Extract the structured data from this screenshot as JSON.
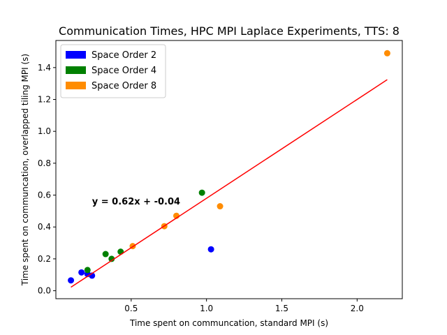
{
  "chart_data": {
    "type": "scatter",
    "title": "Communication Times, HPC MPI Laplace Experiments, TTS: 8",
    "xlabel": "Time spent on communcation, standard MPI (s)",
    "ylabel": "Time spent on communcation, overlapped tiling MPI (s)",
    "xlim": [
      0.0,
      2.3
    ],
    "ylim": [
      -0.05,
      1.57
    ],
    "x_ticks": [
      0.5,
      1.0,
      1.5,
      2.0
    ],
    "x_tick_labels": [
      "0.5",
      "1.0",
      "1.5",
      "2.0"
    ],
    "y_ticks": [
      0.0,
      0.2,
      0.4,
      0.6,
      0.8,
      1.0,
      1.2,
      1.4
    ],
    "y_tick_labels": [
      "0.0",
      "0.2",
      "0.4",
      "0.6",
      "0.8",
      "1.0",
      "1.2",
      "1.4"
    ],
    "grid": false,
    "legend_position": "top-left",
    "series": [
      {
        "name": "Space Order 2",
        "color": "#0000ff",
        "points": [
          [
            0.1,
            0.065
          ],
          [
            0.17,
            0.115
          ],
          [
            0.21,
            0.105
          ],
          [
            0.24,
            0.095
          ],
          [
            1.03,
            0.26
          ]
        ]
      },
      {
        "name": "Space Order 4",
        "color": "#008000",
        "points": [
          [
            0.21,
            0.13
          ],
          [
            0.33,
            0.23
          ],
          [
            0.37,
            0.2
          ],
          [
            0.43,
            0.245
          ],
          [
            0.97,
            0.615
          ]
        ]
      },
      {
        "name": "Space Order 8",
        "color": "#ff8c00",
        "points": [
          [
            0.51,
            0.28
          ],
          [
            0.72,
            0.405
          ],
          [
            0.8,
            0.47
          ],
          [
            1.09,
            0.53
          ],
          [
            2.2,
            1.49
          ]
        ]
      }
    ],
    "fit_line": {
      "slope": 0.62,
      "intercept": -0.04,
      "x_range": [
        0.1,
        2.2
      ],
      "color": "#ff0000",
      "label": "y = 0.62x + -0.04"
    }
  }
}
